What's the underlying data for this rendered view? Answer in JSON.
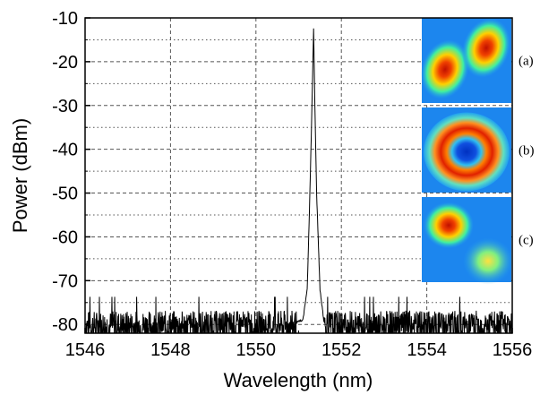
{
  "chart_data": {
    "type": "line",
    "xlabel": "Wavelength (nm)",
    "ylabel": "Power (dBm)",
    "xlim": [
      1546,
      1556
    ],
    "ylim": [
      -82,
      -10
    ],
    "x_ticks": [
      1546,
      1548,
      1550,
      1552,
      1554,
      1556
    ],
    "x_tick_labels": [
      "1546",
      "1548",
      "1550",
      "1552",
      "1554",
      "1556"
    ],
    "y_ticks": [
      -10,
      -20,
      -30,
      -40,
      -50,
      -60,
      -70,
      -80
    ],
    "y_tick_labels": [
      "-10",
      "-20",
      "-30",
      "-40",
      "-50",
      "-60",
      "-70",
      "-80"
    ],
    "grid": true,
    "series": [
      {
        "x": [
          1546.0,
          1547.0,
          1548.0,
          1549.0,
          1550.0,
          1550.8,
          1551.1,
          1551.2,
          1551.25,
          1551.3,
          1551.35,
          1551.38,
          1551.42,
          1551.5,
          1551.6,
          1552.0,
          1553.0,
          1554.0,
          1555.0,
          1556.0
        ],
        "y": [
          -80,
          -80,
          -80,
          -80,
          -80,
          -80,
          -79,
          -72,
          -55,
          -35,
          -12.5,
          -30,
          -50,
          -72,
          -80,
          -80,
          -80,
          -80,
          -80,
          -80
        ]
      }
    ],
    "noise_floor": {
      "mean": -80,
      "spread": 3.5
    },
    "colors": {
      "trace": "#000000",
      "grid": "#555555"
    }
  },
  "insets": [
    {
      "label": "(a)",
      "pattern": "two-lobe-diagonal"
    },
    {
      "label": "(b)",
      "pattern": "donut-ring"
    },
    {
      "label": "(c)",
      "pattern": "two-lobe-offset"
    }
  ]
}
